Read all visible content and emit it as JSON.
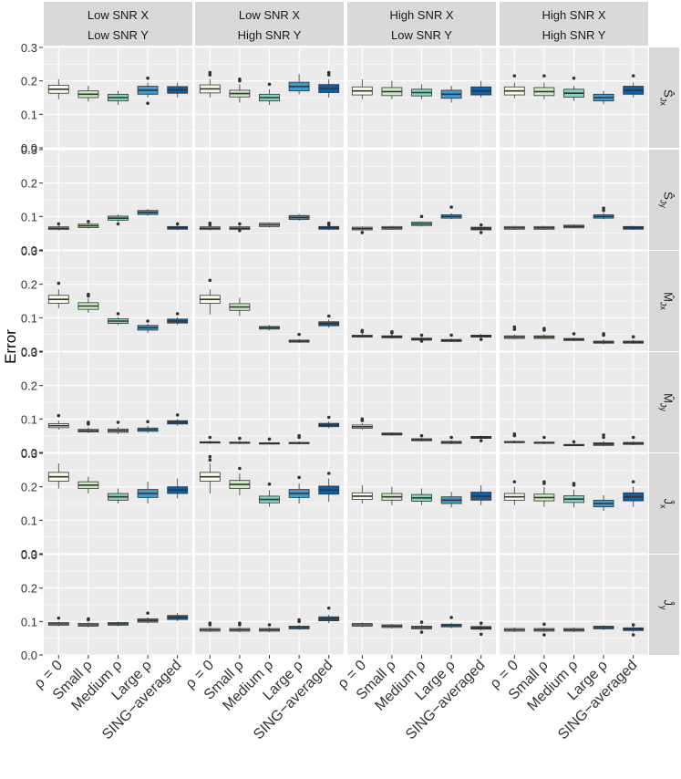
{
  "colors": {
    "panel_bg": "#EBEBEB",
    "grid": "#FFFFFF",
    "strip_bg": "#D9D9D9",
    "box_fills": [
      "#F7FCE8",
      "#CDEBC5",
      "#88CFC0",
      "#3F9BCB",
      "#0E5FA5"
    ],
    "line": "#333333"
  },
  "chart_data": {
    "type": "boxplot",
    "ylabel": "Error",
    "ylim": [
      0,
      0.3
    ],
    "yticks": [
      0.0,
      0.1,
      0.2,
      0.3
    ],
    "ytick_labels": [
      "0.0",
      "0.1",
      "0.2",
      "0.3"
    ],
    "categories": [
      "ρ = 0",
      "Small ρ",
      "Medium ρ",
      "Large ρ",
      "SING−averaged"
    ],
    "columns": [
      {
        "line1": "Low SNR X",
        "line2": "Low SNR Y"
      },
      {
        "line1": "Low SNR X",
        "line2": "High SNR Y"
      },
      {
        "line1": "High SNR X",
        "line2": "Low SNR Y"
      },
      {
        "line1": "High SNR X",
        "line2": "High SNR Y"
      }
    ],
    "rows": [
      {
        "label": "Ŝ",
        "sub": "Jx"
      },
      {
        "label": "Ŝ",
        "sub": "Jy"
      },
      {
        "label": "M̂",
        "sub": "Jx"
      },
      {
        "label": "M̂",
        "sub": "Jy"
      },
      {
        "label": "Ĵ",
        "sub": "x"
      },
      {
        "label": "Ĵ",
        "sub": "y"
      }
    ],
    "boxes": [
      [
        [
          [
            0.175,
            0.012,
            0.145,
            0.205,
            []
          ],
          [
            0.16,
            0.01,
            0.138,
            0.185,
            []
          ],
          [
            0.15,
            0.01,
            0.128,
            0.17,
            []
          ],
          [
            0.172,
            0.012,
            0.15,
            0.195,
            [
              0.208,
              0.133
            ]
          ],
          [
            0.173,
            0.01,
            0.15,
            0.195,
            []
          ]
        ],
        [
          [
            0.176,
            0.012,
            0.15,
            0.205,
            [
              0.218,
              0.225
            ]
          ],
          [
            0.162,
            0.01,
            0.135,
            0.19,
            [
              0.205,
              0.2
            ]
          ],
          [
            0.15,
            0.01,
            0.128,
            0.175,
            [
              0.19
            ]
          ],
          [
            0.183,
            0.013,
            0.16,
            0.22,
            []
          ],
          [
            0.177,
            0.012,
            0.15,
            0.205,
            [
              0.218,
              0.225
            ]
          ]
        ],
        [
          [
            0.17,
            0.012,
            0.145,
            0.205,
            []
          ],
          [
            0.168,
            0.012,
            0.145,
            0.2,
            []
          ],
          [
            0.165,
            0.01,
            0.145,
            0.19,
            []
          ],
          [
            0.16,
            0.012,
            0.135,
            0.185,
            []
          ],
          [
            0.17,
            0.012,
            0.15,
            0.2,
            []
          ]
        ],
        [
          [
            0.17,
            0.012,
            0.148,
            0.195,
            [
              0.215
            ]
          ],
          [
            0.168,
            0.012,
            0.145,
            0.195,
            [
              0.215
            ]
          ],
          [
            0.163,
            0.012,
            0.14,
            0.185,
            [
              0.208
            ]
          ],
          [
            0.15,
            0.01,
            0.13,
            0.17,
            []
          ],
          [
            0.172,
            0.012,
            0.15,
            0.195,
            [
              0.215
            ]
          ]
        ]
      ],
      [
        [
          [
            0.065,
            0.004,
            0.058,
            0.072,
            [
              0.078
            ]
          ],
          [
            0.072,
            0.005,
            0.064,
            0.079,
            [
              0.085
            ]
          ],
          [
            0.095,
            0.006,
            0.085,
            0.106,
            [
              0.078
            ]
          ],
          [
            0.112,
            0.006,
            0.102,
            0.122,
            []
          ],
          [
            0.066,
            0.004,
            0.059,
            0.073,
            [
              0.078
            ]
          ]
        ],
        [
          [
            0.065,
            0.004,
            0.058,
            0.072,
            [
              0.075,
              0.08
            ]
          ],
          [
            0.065,
            0.004,
            0.058,
            0.072,
            [
              0.078,
              0.058
            ]
          ],
          [
            0.075,
            0.005,
            0.067,
            0.082,
            []
          ],
          [
            0.097,
            0.006,
            0.087,
            0.108,
            []
          ],
          [
            0.066,
            0.004,
            0.059,
            0.073,
            [
              0.075,
              0.08
            ]
          ]
        ],
        [
          [
            0.064,
            0.004,
            0.058,
            0.07,
            [
              0.052
            ]
          ],
          [
            0.066,
            0.004,
            0.06,
            0.072,
            []
          ],
          [
            0.078,
            0.005,
            0.07,
            0.085,
            [
              0.1
            ]
          ],
          [
            0.1,
            0.005,
            0.092,
            0.11,
            [
              0.128
            ]
          ],
          [
            0.064,
            0.004,
            0.058,
            0.07,
            [
              0.075,
              0.052
            ]
          ]
        ],
        [
          [
            0.066,
            0.004,
            0.06,
            0.072,
            []
          ],
          [
            0.066,
            0.004,
            0.06,
            0.072,
            []
          ],
          [
            0.07,
            0.004,
            0.064,
            0.077,
            []
          ],
          [
            0.1,
            0.005,
            0.092,
            0.11,
            [
              0.118,
              0.125
            ]
          ],
          [
            0.066,
            0.004,
            0.06,
            0.072,
            []
          ]
        ]
      ],
      [
        [
          [
            0.155,
            0.012,
            0.128,
            0.185,
            [
              0.203
            ]
          ],
          [
            0.135,
            0.01,
            0.115,
            0.158,
            [
              0.165,
              0.17
            ]
          ],
          [
            0.09,
            0.007,
            0.078,
            0.102,
            [
              0.112
            ]
          ],
          [
            0.07,
            0.007,
            0.055,
            0.082,
            [
              0.09
            ]
          ],
          [
            0.09,
            0.006,
            0.078,
            0.102,
            [
              0.112
            ]
          ]
        ],
        [
          [
            0.155,
            0.012,
            0.11,
            0.185,
            [
              0.212
            ]
          ],
          [
            0.132,
            0.01,
            0.105,
            0.16,
            []
          ],
          [
            0.07,
            0.004,
            0.062,
            0.078,
            []
          ],
          [
            0.03,
            0.003,
            0.025,
            0.036,
            [
              0.05
            ]
          ],
          [
            0.082,
            0.006,
            0.07,
            0.095,
            [
              0.105
            ]
          ]
        ],
        [
          [
            0.045,
            0.003,
            0.04,
            0.052,
            [
              0.058,
              0.062
            ]
          ],
          [
            0.043,
            0.003,
            0.038,
            0.05,
            [
              0.055,
              0.058
            ]
          ],
          [
            0.036,
            0.003,
            0.032,
            0.042,
            [
              0.03,
              0.048
            ]
          ],
          [
            0.032,
            0.003,
            0.028,
            0.038,
            [
              0.048
            ]
          ],
          [
            0.045,
            0.003,
            0.04,
            0.052,
            [
              0.035
            ]
          ]
        ],
        [
          [
            0.042,
            0.004,
            0.036,
            0.05,
            [
              0.065,
              0.072
            ]
          ],
          [
            0.042,
            0.004,
            0.036,
            0.05,
            [
              0.063,
              0.068
            ]
          ],
          [
            0.035,
            0.003,
            0.03,
            0.041,
            [
              0.052
            ]
          ],
          [
            0.027,
            0.003,
            0.02,
            0.035,
            [
              0.048,
              0.052
            ]
          ],
          [
            0.027,
            0.003,
            0.022,
            0.034,
            [
              0.043
            ]
          ]
        ]
      ],
      [
        [
          [
            0.08,
            0.006,
            0.068,
            0.095,
            [
              0.11
            ]
          ],
          [
            0.065,
            0.004,
            0.058,
            0.075,
            [
              0.09,
              0.085
            ]
          ],
          [
            0.065,
            0.005,
            0.055,
            0.076,
            [
              0.09
            ]
          ],
          [
            0.068,
            0.005,
            0.058,
            0.08,
            [
              0.092
            ]
          ],
          [
            0.09,
            0.005,
            0.08,
            0.1,
            [
              0.112
            ]
          ]
        ],
        [
          [
            0.03,
            0.002,
            0.026,
            0.035,
            [
              0.045
            ]
          ],
          [
            0.029,
            0.002,
            0.025,
            0.034,
            [
              0.042
            ]
          ],
          [
            0.027,
            0.002,
            0.024,
            0.031,
            [
              0.04
            ]
          ],
          [
            0.028,
            0.002,
            0.024,
            0.033,
            [
              0.045,
              0.05
            ]
          ],
          [
            0.082,
            0.005,
            0.072,
            0.093,
            [
              0.105
            ]
          ]
        ],
        [
          [
            0.077,
            0.005,
            0.068,
            0.087,
            [
              0.1,
              0.095
            ]
          ],
          [
            0.055,
            0.003,
            0.05,
            0.06,
            []
          ],
          [
            0.038,
            0.003,
            0.033,
            0.044,
            [
              0.05
            ]
          ],
          [
            0.03,
            0.003,
            0.025,
            0.036,
            [
              0.045
            ]
          ],
          [
            0.045,
            0.003,
            0.04,
            0.051,
            [
              0.035
            ]
          ]
        ],
        [
          [
            0.031,
            0.002,
            0.027,
            0.036,
            [
              0.05,
              0.055
            ]
          ],
          [
            0.029,
            0.002,
            0.025,
            0.034,
            [
              0.045
            ]
          ],
          [
            0.022,
            0.002,
            0.019,
            0.026,
            [
              0.032
            ]
          ],
          [
            0.025,
            0.004,
            0.018,
            0.034,
            [
              0.045,
              0.052
            ]
          ],
          [
            0.027,
            0.003,
            0.022,
            0.033,
            [
              0.045
            ]
          ]
        ]
      ],
      [
        [
          [
            0.23,
            0.013,
            0.195,
            0.27,
            []
          ],
          [
            0.205,
            0.01,
            0.18,
            0.23,
            []
          ],
          [
            0.17,
            0.01,
            0.15,
            0.195,
            []
          ],
          [
            0.18,
            0.012,
            0.15,
            0.215,
            []
          ],
          [
            0.19,
            0.01,
            0.165,
            0.225,
            []
          ]
        ],
        [
          [
            0.23,
            0.013,
            0.18,
            0.27,
            [
              0.28,
              0.29
            ]
          ],
          [
            0.207,
            0.012,
            0.175,
            0.24,
            [
              0.255
            ]
          ],
          [
            0.162,
            0.01,
            0.14,
            0.19,
            [
              0.208
            ]
          ],
          [
            0.18,
            0.012,
            0.15,
            0.21,
            [
              0.228
            ]
          ],
          [
            0.19,
            0.012,
            0.155,
            0.225,
            [
              0.24
            ]
          ]
        ],
        [
          [
            0.172,
            0.01,
            0.15,
            0.205,
            []
          ],
          [
            0.17,
            0.01,
            0.145,
            0.2,
            []
          ],
          [
            0.167,
            0.01,
            0.145,
            0.195,
            []
          ],
          [
            0.16,
            0.01,
            0.138,
            0.185,
            []
          ],
          [
            0.172,
            0.012,
            0.145,
            0.205,
            []
          ]
        ],
        [
          [
            0.17,
            0.01,
            0.145,
            0.2,
            [
              0.215
            ]
          ],
          [
            0.168,
            0.01,
            0.14,
            0.2,
            [
              0.21,
              0.215
            ]
          ],
          [
            0.163,
            0.01,
            0.138,
            0.192,
            [
              0.205,
              0.21
            ]
          ],
          [
            0.15,
            0.01,
            0.128,
            0.175,
            []
          ],
          [
            0.17,
            0.012,
            0.14,
            0.2,
            [
              0.215
            ]
          ]
        ]
      ],
      [
        [
          [
            0.093,
            0.004,
            0.086,
            0.1,
            [
              0.11
            ]
          ],
          [
            0.09,
            0.004,
            0.083,
            0.097,
            [
              0.105,
              0.108
            ]
          ],
          [
            0.093,
            0.004,
            0.086,
            0.1,
            []
          ],
          [
            0.103,
            0.005,
            0.094,
            0.112,
            [
              0.125
            ]
          ],
          [
            0.112,
            0.006,
            0.101,
            0.125,
            []
          ]
        ],
        [
          [
            0.075,
            0.004,
            0.068,
            0.082,
            [
              0.09,
              0.095
            ]
          ],
          [
            0.075,
            0.004,
            0.068,
            0.082,
            [
              0.09,
              0.095
            ]
          ],
          [
            0.075,
            0.004,
            0.068,
            0.082,
            [
              0.09
            ]
          ],
          [
            0.082,
            0.004,
            0.075,
            0.089,
            [
              0.1,
              0.105
            ]
          ],
          [
            0.108,
            0.006,
            0.095,
            0.12,
            [
              0.14
            ]
          ]
        ],
        [
          [
            0.09,
            0.004,
            0.083,
            0.097,
            []
          ],
          [
            0.086,
            0.004,
            0.079,
            0.093,
            []
          ],
          [
            0.082,
            0.004,
            0.075,
            0.09,
            [
              0.068,
              0.098
            ]
          ],
          [
            0.088,
            0.004,
            0.08,
            0.096,
            [
              0.112
            ]
          ],
          [
            0.081,
            0.004,
            0.073,
            0.089,
            [
              0.062,
              0.095
            ]
          ]
        ],
        [
          [
            0.075,
            0.004,
            0.068,
            0.082,
            []
          ],
          [
            0.075,
            0.004,
            0.068,
            0.082,
            [
              0.06,
              0.092
            ]
          ],
          [
            0.075,
            0.004,
            0.068,
            0.082,
            []
          ],
          [
            0.082,
            0.004,
            0.075,
            0.089,
            []
          ],
          [
            0.077,
            0.004,
            0.069,
            0.085,
            [
              0.06,
              0.09
            ]
          ]
        ]
      ]
    ]
  }
}
